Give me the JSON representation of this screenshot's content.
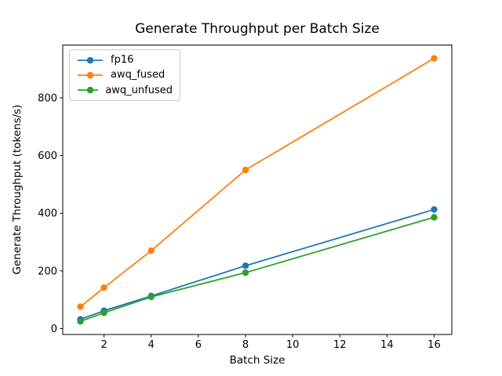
{
  "chart_data": {
    "type": "line",
    "title": "Generate Throughput per Batch Size",
    "xlabel": "Batch Size",
    "ylabel": "Generate Throughput (tokens/s)",
    "x": [
      1,
      2,
      4,
      8,
      16
    ],
    "series": [
      {
        "name": "fp16",
        "color": "#1f77b4",
        "values": [
          32,
          62,
          113,
          218,
          413
        ]
      },
      {
        "name": "awq_fused",
        "color": "#ff7f0e",
        "values": [
          76,
          142,
          270,
          550,
          937
        ]
      },
      {
        "name": "awq_unfused",
        "color": "#2ca02c",
        "values": [
          25,
          55,
          110,
          194,
          386
        ]
      }
    ],
    "xlim": [
      0.25,
      16.75
    ],
    "ylim": [
      -21,
      983
    ],
    "xticks": [
      2,
      4,
      6,
      8,
      10,
      12,
      14,
      16
    ],
    "yticks": [
      0,
      200,
      400,
      600,
      800
    ],
    "grid": false,
    "legend_position": "upper left",
    "marker": "circle",
    "axes_color": "#000000",
    "background": "#ffffff"
  }
}
